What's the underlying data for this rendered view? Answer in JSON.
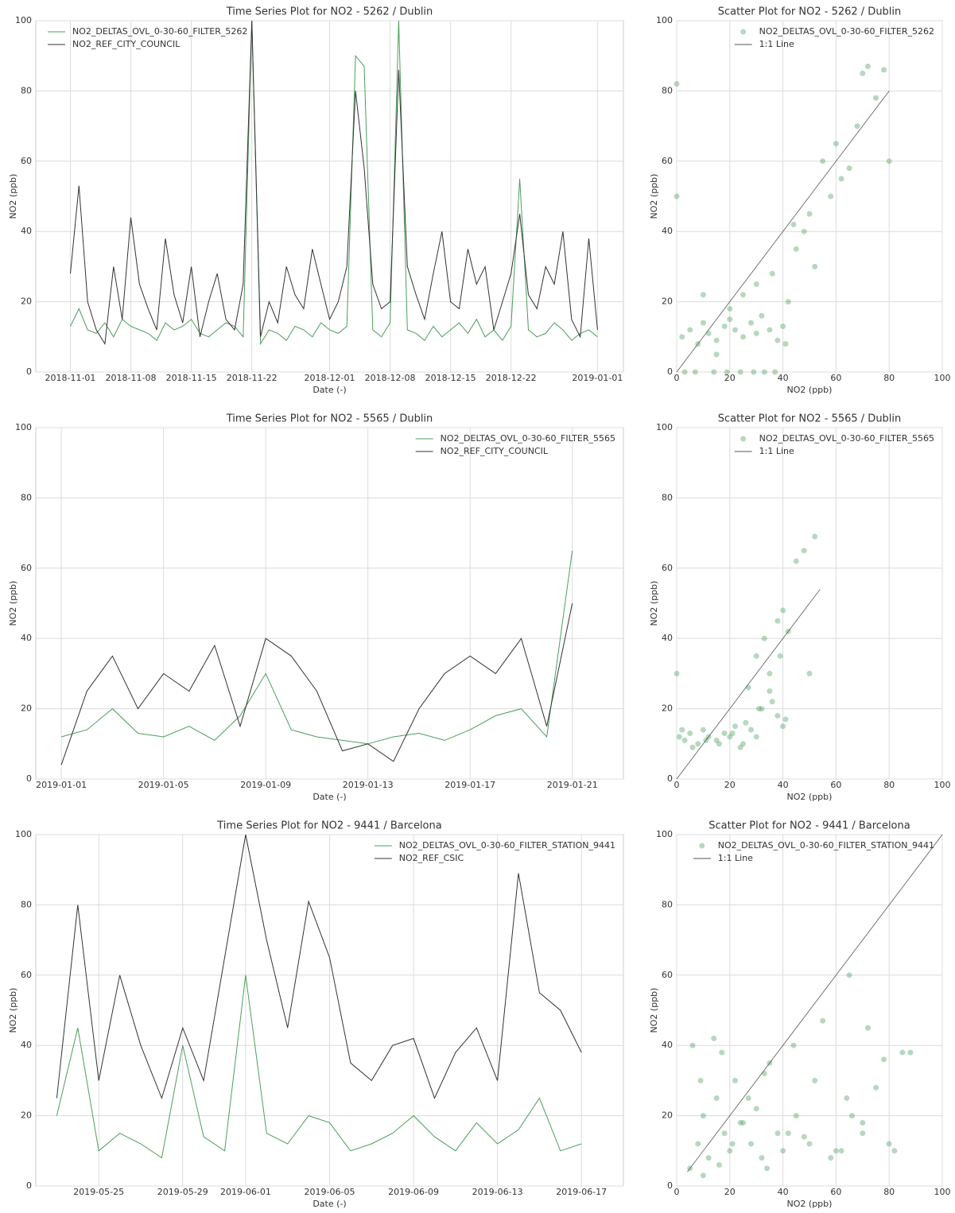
{
  "chart_data": [
    {
      "type": "line",
      "title": "Time Series Plot for NO2 - 5262 / Dublin",
      "xlabel": "Date (-)",
      "ylabel": "NO2 (ppb)",
      "x": [
        "2018-11-01",
        "2018-11-02",
        "2018-11-03",
        "2018-11-04",
        "2018-11-05",
        "2018-11-06",
        "2018-11-07",
        "2018-11-08",
        "2018-11-09",
        "2018-11-10",
        "2018-11-11",
        "2018-11-12",
        "2018-11-13",
        "2018-11-14",
        "2018-11-15",
        "2018-11-16",
        "2018-11-17",
        "2018-11-18",
        "2018-11-19",
        "2018-11-20",
        "2018-11-21",
        "2018-11-22",
        "2018-11-23",
        "2018-11-24",
        "2018-11-25",
        "2018-11-26",
        "2018-11-27",
        "2018-11-28",
        "2018-11-29",
        "2018-11-30",
        "2018-12-01",
        "2018-12-02",
        "2018-12-03",
        "2018-12-04",
        "2018-12-05",
        "2018-12-06",
        "2018-12-07",
        "2018-12-08",
        "2018-12-09",
        "2018-12-10",
        "2018-12-11",
        "2018-12-12",
        "2018-12-13",
        "2018-12-14",
        "2018-12-15",
        "2018-12-16",
        "2018-12-17",
        "2018-12-18",
        "2018-12-19",
        "2018-12-20",
        "2018-12-21",
        "2018-12-22",
        "2018-12-23",
        "2018-12-24",
        "2018-12-25",
        "2018-12-26",
        "2018-12-27",
        "2018-12-28",
        "2018-12-29",
        "2018-12-30",
        "2018-12-31",
        "2019-01-01"
      ],
      "series": [
        {
          "name": "NO2_DELTAS_OVL_0-30-60_FILTER_5262",
          "color": "#4c9e5c",
          "values": [
            13,
            18,
            12,
            11,
            14,
            10,
            15,
            13,
            12,
            11,
            9,
            14,
            12,
            13,
            15,
            11,
            10,
            12,
            14,
            13,
            10,
            100,
            8,
            12,
            11,
            9,
            13,
            12,
            10,
            14,
            12,
            11,
            13,
            90,
            87,
            12,
            10,
            14,
            100,
            12,
            11,
            9,
            13,
            10,
            12,
            14,
            11,
            15,
            10,
            12,
            9,
            13,
            55,
            12,
            10,
            11,
            14,
            12,
            9,
            11,
            12,
            10
          ]
        },
        {
          "name": "NO2_REF_CITY_COUNCIL",
          "color": "#333333",
          "values": [
            28,
            53,
            20,
            12,
            8,
            30,
            15,
            44,
            25,
            18,
            12,
            38,
            22,
            14,
            30,
            10,
            20,
            28,
            15,
            12,
            25,
            100,
            10,
            20,
            14,
            30,
            22,
            18,
            35,
            25,
            15,
            20,
            30,
            80,
            58,
            25,
            18,
            20,
            86,
            30,
            22,
            15,
            28,
            40,
            20,
            18,
            35,
            25,
            30,
            12,
            20,
            28,
            45,
            22,
            18,
            30,
            25,
            40,
            15,
            10,
            38,
            12
          ]
        }
      ],
      "xlim": [
        "2018-10-28",
        "2019-01-04"
      ],
      "ylim": [
        0,
        100
      ],
      "xticks": [
        "2018-11-01",
        "2018-11-08",
        "2018-11-15",
        "2018-11-22",
        "2018-12-01",
        "2018-12-08",
        "2018-12-15",
        "2018-12-22",
        "2019-01-01"
      ],
      "yticks": [
        0,
        20,
        40,
        60,
        80,
        100
      ],
      "grid": true,
      "legend": "upper left"
    },
    {
      "type": "scatter",
      "title": "Scatter Plot for NO2 - 5262 / Dublin",
      "xlabel": "NO2 (ppb)",
      "ylabel": "NO2 (ppb)",
      "series": [
        {
          "name": "NO2_DELTAS_OVL_0-30-60_FILTER_5262",
          "color": "#4c9e5c",
          "mode": "markers",
          "x": [
            2,
            5,
            8,
            10,
            12,
            15,
            18,
            20,
            22,
            25,
            28,
            30,
            32,
            35,
            38,
            40,
            3,
            7,
            14,
            19,
            24,
            29,
            33,
            37,
            42,
            45,
            48,
            50,
            52,
            55,
            58,
            60,
            62,
            65,
            68,
            70,
            72,
            75,
            78,
            80,
            0,
            0,
            20,
            25,
            30,
            44,
            41,
            36,
            10,
            15
          ],
          "y": [
            10,
            12,
            8,
            14,
            11,
            9,
            13,
            15,
            12,
            10,
            14,
            11,
            16,
            12,
            9,
            13,
            0,
            0,
            0,
            0,
            0,
            0,
            0,
            0,
            20,
            35,
            40,
            45,
            30,
            60,
            50,
            65,
            55,
            58,
            70,
            85,
            87,
            78,
            86,
            60,
            82,
            50,
            18,
            22,
            25,
            42,
            8,
            28,
            22,
            5
          ]
        },
        {
          "name": "1:1 Line",
          "color": "#555555",
          "mode": "line",
          "x": [
            0,
            80
          ],
          "y": [
            0,
            80
          ]
        }
      ],
      "xlim": [
        0,
        100
      ],
      "ylim": [
        0,
        100
      ],
      "xticks": [
        0,
        20,
        40,
        60,
        80,
        100
      ],
      "yticks": [
        0,
        20,
        40,
        60,
        80,
        100
      ],
      "grid": true,
      "legend": "upper right"
    },
    {
      "type": "line",
      "title": "Time Series Plot for NO2 - 5565 / Dublin",
      "xlabel": "Date (-)",
      "ylabel": "NO2 (ppb)",
      "x": [
        "2019-01-01",
        "2019-01-02",
        "2019-01-03",
        "2019-01-04",
        "2019-01-05",
        "2019-01-06",
        "2019-01-07",
        "2019-01-08",
        "2019-01-09",
        "2019-01-10",
        "2019-01-11",
        "2019-01-12",
        "2019-01-13",
        "2019-01-14",
        "2019-01-15",
        "2019-01-16",
        "2019-01-17",
        "2019-01-18",
        "2019-01-19",
        "2019-01-20",
        "2019-01-21"
      ],
      "series": [
        {
          "name": "NO2_DELTAS_OVL_0-30-60_FILTER_5565",
          "color": "#4c9e5c",
          "values": [
            12,
            14,
            20,
            13,
            12,
            15,
            11,
            18,
            30,
            14,
            12,
            11,
            10,
            12,
            13,
            11,
            14,
            18,
            20,
            12,
            65
          ]
        },
        {
          "name": "NO2_REF_CITY_COUNCIL",
          "color": "#333333",
          "values": [
            4,
            25,
            35,
            20,
            30,
            25,
            38,
            15,
            40,
            35,
            25,
            8,
            10,
            5,
            20,
            30,
            35,
            30,
            40,
            15,
            50
          ]
        }
      ],
      "xlim": [
        "2018-12-31",
        "2019-01-23"
      ],
      "ylim": [
        0,
        100
      ],
      "xticks": [
        "2019-01-01",
        "2019-01-05",
        "2019-01-09",
        "2019-01-13",
        "2019-01-17",
        "2019-01-21"
      ],
      "yticks": [
        0,
        20,
        40,
        60,
        80,
        100
      ],
      "grid": true,
      "legend": "upper right"
    },
    {
      "type": "scatter",
      "title": "Scatter Plot for NO2 - 5565 / Dublin",
      "xlabel": "NO2 (ppb)",
      "ylabel": "NO2 (ppb)",
      "series": [
        {
          "name": "NO2_DELTAS_OVL_0-30-60_FILTER_5565",
          "color": "#4c9e5c",
          "mode": "markers",
          "x": [
            1,
            3,
            5,
            8,
            10,
            12,
            15,
            18,
            20,
            22,
            25,
            28,
            30,
            32,
            35,
            38,
            40,
            2,
            6,
            11,
            16,
            21,
            26,
            31,
            36,
            41,
            30,
            33,
            35,
            38,
            40,
            42,
            45,
            48,
            50,
            52,
            0,
            39,
            27,
            24
          ],
          "y": [
            12,
            11,
            13,
            10,
            14,
            12,
            11,
            13,
            12,
            15,
            10,
            14,
            12,
            20,
            25,
            18,
            15,
            14,
            9,
            11,
            10,
            13,
            16,
            20,
            22,
            17,
            35,
            40,
            30,
            45,
            48,
            42,
            62,
            65,
            30,
            69,
            30,
            35,
            26,
            9
          ]
        },
        {
          "name": "1:1 Line",
          "color": "#555555",
          "mode": "line",
          "x": [
            0,
            54
          ],
          "y": [
            0,
            54
          ]
        }
      ],
      "xlim": [
        0,
        100
      ],
      "ylim": [
        0,
        100
      ],
      "xticks": [
        0,
        20,
        40,
        60,
        80,
        100
      ],
      "yticks": [
        0,
        20,
        40,
        60,
        80,
        100
      ],
      "grid": true,
      "legend": "upper right"
    },
    {
      "type": "line",
      "title": "Time Series Plot for NO2 - 9441 / Barcelona",
      "xlabel": "Date (-)",
      "ylabel": "NO2 (ppb)",
      "x": [
        "2019-05-23",
        "2019-05-24",
        "2019-05-25",
        "2019-05-26",
        "2019-05-27",
        "2019-05-28",
        "2019-05-29",
        "2019-05-30",
        "2019-05-31",
        "2019-06-01",
        "2019-06-02",
        "2019-06-03",
        "2019-06-04",
        "2019-06-05",
        "2019-06-06",
        "2019-06-07",
        "2019-06-08",
        "2019-06-09",
        "2019-06-10",
        "2019-06-11",
        "2019-06-12",
        "2019-06-13",
        "2019-06-14",
        "2019-06-15",
        "2019-06-16",
        "2019-06-17"
      ],
      "series": [
        {
          "name": "NO2_DELTAS_OVL_0-30-60_FILTER_STATION_9441",
          "color": "#4c9e5c",
          "values": [
            20,
            45,
            10,
            15,
            12,
            8,
            40,
            14,
            10,
            60,
            15,
            12,
            20,
            18,
            10,
            12,
            15,
            20,
            14,
            10,
            18,
            12,
            16,
            25,
            10,
            12
          ]
        },
        {
          "name": "NO2_REF_CSIC",
          "color": "#333333",
          "values": [
            25,
            80,
            30,
            60,
            40,
            25,
            45,
            30,
            65,
            100,
            70,
            45,
            81,
            65,
            35,
            30,
            40,
            42,
            25,
            38,
            45,
            30,
            89,
            55,
            50,
            38
          ]
        }
      ],
      "xlim": [
        "2019-05-22",
        "2019-06-19"
      ],
      "ylim": [
        0,
        100
      ],
      "xticks": [
        "2019-05-25",
        "2019-05-29",
        "2019-06-01",
        "2019-06-05",
        "2019-06-09",
        "2019-06-13",
        "2019-06-17"
      ],
      "yticks": [
        0,
        20,
        40,
        60,
        80,
        100
      ],
      "grid": true,
      "legend": "upper right"
    },
    {
      "type": "scatter",
      "title": "Scatter Plot for NO2 - 9441 / Barcelona",
      "xlabel": "NO2 (ppb)",
      "ylabel": "NO2 (ppb)",
      "series": [
        {
          "name": "NO2_DELTAS_OVL_0-30-60_FILTER_STATION_9441",
          "color": "#4c9e5c",
          "mode": "markers",
          "x": [
            5,
            8,
            10,
            12,
            15,
            18,
            20,
            22,
            25,
            28,
            30,
            32,
            35,
            38,
            40,
            45,
            50,
            55,
            60,
            65,
            70,
            75,
            80,
            85,
            88,
            6,
            9,
            14,
            17,
            24,
            27,
            33,
            42,
            48,
            52,
            58,
            62,
            66,
            72,
            78,
            10,
            16,
            21,
            34,
            44,
            64,
            70,
            82
          ],
          "y": [
            5,
            12,
            20,
            8,
            25,
            15,
            10,
            30,
            18,
            12,
            22,
            8,
            35,
            15,
            10,
            20,
            12,
            47,
            10,
            60,
            15,
            28,
            12,
            38,
            38,
            40,
            30,
            42,
            38,
            18,
            25,
            32,
            15,
            14,
            30,
            8,
            10,
            20,
            45,
            36,
            3,
            6,
            12,
            5,
            40,
            25,
            18,
            10
          ]
        },
        {
          "name": "1:1 Line",
          "color": "#555555",
          "mode": "line",
          "x": [
            4,
            100
          ],
          "y": [
            4,
            100
          ]
        }
      ],
      "xlim": [
        0,
        100
      ],
      "ylim": [
        0,
        100
      ],
      "xticks": [
        0,
        20,
        40,
        60,
        80,
        100
      ],
      "yticks": [
        0,
        20,
        40,
        60,
        80,
        100
      ],
      "grid": true,
      "legend": "upper right"
    }
  ]
}
